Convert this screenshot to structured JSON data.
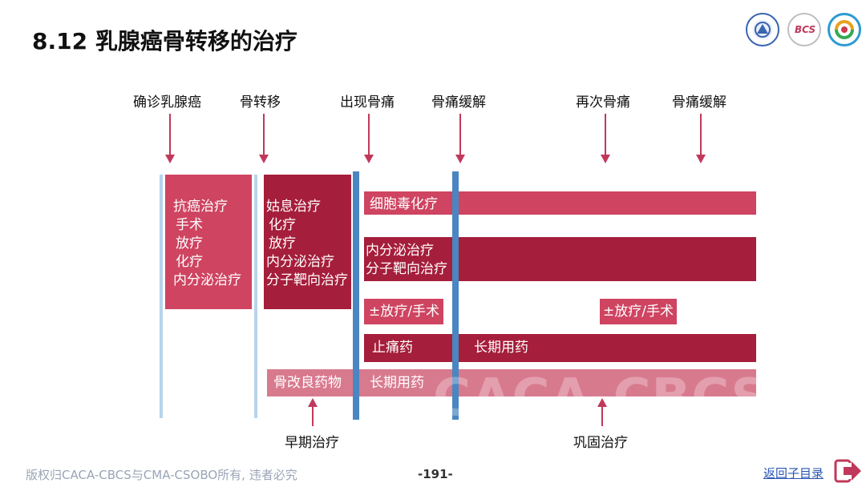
{
  "title": "8.12 乳腺癌骨转移的治疗",
  "logos": {
    "logo1": "caca-logo-icon",
    "logo2_text": "BCS",
    "logo3": "csobo-logo-icon"
  },
  "stages": [
    "确诊乳腺癌",
    "骨转移",
    "出现骨痛",
    "骨痛缓解",
    "再次骨痛",
    "骨痛缓解"
  ],
  "blocks": {
    "anticancer": [
      "抗癌治疗",
      "手术",
      "放疗",
      "化疗",
      "内分泌治疗"
    ],
    "palliative": [
      "姑息治疗",
      "化疗",
      "放疗",
      "内分泌治疗",
      "分子靶向治疗"
    ],
    "chemo": "细胞毒化疗",
    "endocrine": [
      "内分泌治疗",
      "分子靶向治疗"
    ],
    "radio1": "±放疗/手术",
    "radio2": "±放疗/手术",
    "analgesic": "止痛药",
    "longterm1": "长期用药",
    "bone_modifier": "骨改良药物",
    "longterm2": "长期用药"
  },
  "watermark": "CACA-CBCS",
  "bottom_labels": [
    "早期治疗",
    "巩固治疗"
  ],
  "footer": {
    "copyright": "版权归CACA-CBCS与CMA-CSOBO所有, 违者必究",
    "page": "-191-",
    "back": "返回子目录"
  },
  "colors": {
    "pink": "#ce4461",
    "crimson": "#a51e3b",
    "soft": "#d87a8e",
    "blue": "#4a86c1",
    "lightblue": "#b9d3ea",
    "arrow": "#c0395a"
  }
}
